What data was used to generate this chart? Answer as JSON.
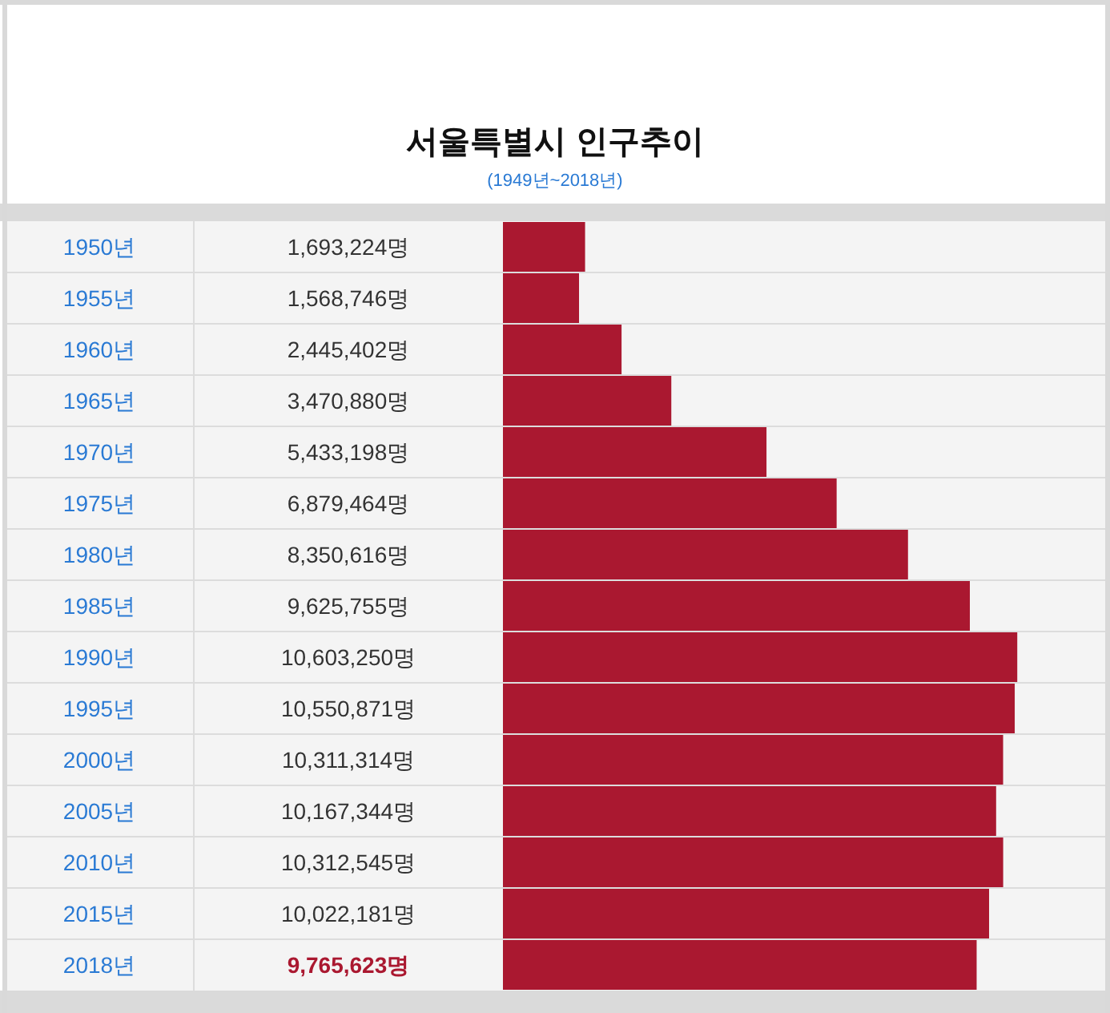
{
  "chart_data": {
    "type": "bar",
    "orientation": "horizontal",
    "title": "서울특별시 인구추이",
    "subtitle": "(1949년~2018년)",
    "categories": [
      "1950년",
      "1955년",
      "1960년",
      "1965년",
      "1970년",
      "1975년",
      "1980년",
      "1985년",
      "1990년",
      "1995년",
      "2000년",
      "2005년",
      "2010년",
      "2015년",
      "2018년"
    ],
    "values": [
      1693224,
      1568746,
      2445402,
      3470880,
      5433198,
      6879464,
      8350616,
      9625755,
      10603250,
      10550871,
      10311314,
      10167344,
      10312545,
      10022181,
      9765623
    ],
    "value_labels": [
      "1,693,224명",
      "1,568,746명",
      "2,445,402명",
      "3,470,880명",
      "5,433,198명",
      "6,879,464명",
      "8,350,616명",
      "9,625,755명",
      "10,603,250명",
      "10,550,871명",
      "10,311,314명",
      "10,167,344명",
      "10,312,545명",
      "10,022,181명",
      "9,765,623명"
    ],
    "color": "#aa1830"
  }
}
